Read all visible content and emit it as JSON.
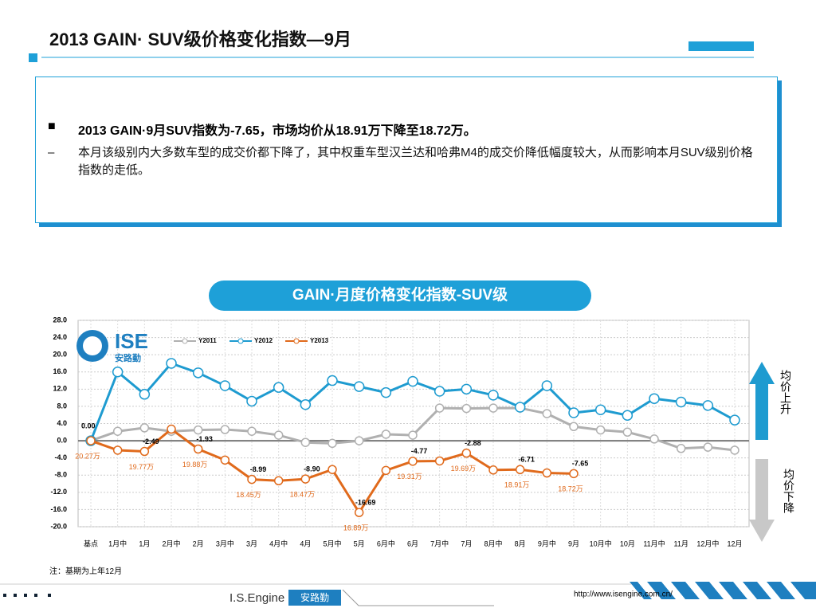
{
  "header": {
    "title": "2013 GAIN· SUV级价格变化指数—9月"
  },
  "summary": {
    "bullet": "2013 GAIN·9月SUV指数为-7.65，市场均价从18.91万下降至18.72万。",
    "detail": "本月该级别内大多数车型的成交价都下降了，其中权重车型汉兰达和哈弗M4的成交价降低幅度较大，从而影响本月SUV级别价格指数的走低。"
  },
  "chart_data": {
    "type": "line",
    "title": "GAIN·月度价格变化指数-SUV级",
    "categories": [
      "基点",
      "1月中",
      "1月",
      "2月中",
      "2月",
      "3月中",
      "3月",
      "4月中",
      "4月",
      "5月中",
      "5月",
      "6月中",
      "6月",
      "7月中",
      "7月",
      "8月中",
      "8月",
      "9月中",
      "9月",
      "10月中",
      "10月",
      "11月中",
      "11月",
      "12月中",
      "12月"
    ],
    "series": [
      {
        "name": "Y2011",
        "color": "#b0b0b0",
        "values": [
          0,
          2.2,
          3.0,
          2.2,
          2.5,
          2.6,
          2.2,
          1.3,
          -0.4,
          -0.6,
          0.0,
          1.5,
          1.3,
          7.6,
          7.5,
          7.6,
          7.6,
          6.3,
          3.3,
          2.5,
          2.0,
          0.4,
          -1.8,
          -1.5,
          -2.2
        ]
      },
      {
        "name": "Y2012",
        "color": "#1e9bd0",
        "values": [
          0,
          16,
          10.8,
          18,
          15.8,
          12.8,
          9.2,
          12.4,
          8.4,
          14,
          12.6,
          11.2,
          13.8,
          11.5,
          12,
          10.6,
          7.8,
          12.8,
          6.5,
          7.2,
          5.9,
          9.8,
          9,
          8.2,
          4.8
        ]
      },
      {
        "name": "Y2013",
        "color": "#e06a1c",
        "values": [
          0,
          -2.2,
          -2.49,
          2.7,
          -1.93,
          -4.5,
          -8.99,
          -9.3,
          -8.9,
          -6.7,
          -16.69,
          -6.9,
          -4.77,
          -4.7,
          -2.88,
          -6.8,
          -6.71,
          -7.5,
          -7.65,
          null,
          null,
          null,
          null,
          null,
          null
        ],
        "value_labels": [
          "0.00",
          null,
          "-2.49",
          null,
          "-1.93",
          null,
          "-8.99",
          null,
          "-8.90",
          null,
          "-16.69",
          null,
          "-4.77",
          null,
          "-2.88",
          null,
          "-6.71",
          null,
          "-7.65",
          null,
          null,
          null,
          null,
          null,
          null
        ],
        "price_labels": [
          "20.27万",
          null,
          "19.77万",
          null,
          "19.88万",
          null,
          "18.45万",
          null,
          "18.47万",
          null,
          "16.89万",
          null,
          "19.31万",
          null,
          "19.69万",
          null,
          "18.91万",
          null,
          "18.72万",
          null,
          null,
          null,
          null,
          null,
          null
        ]
      }
    ],
    "ylim": [
      -20,
      28
    ],
    "yticks": [
      {
        "value": -20,
        "label": "-20.0"
      },
      {
        "value": -16,
        "label": "-16.0"
      },
      {
        "value": -12,
        "label": "-12.0"
      },
      {
        "value": -8,
        "label": "-8.0"
      },
      {
        "value": -4,
        "label": "-4.0"
      },
      {
        "value": 0,
        "label": "0.0"
      },
      {
        "value": 4,
        "label": "4.0"
      },
      {
        "value": 8,
        "label": "8.0"
      },
      {
        "value": 12,
        "label": "12.0"
      },
      {
        "value": 16,
        "label": "16.0"
      },
      {
        "value": 20,
        "label": "20.0"
      },
      {
        "value": 24,
        "label": "24.0"
      },
      {
        "value": 28,
        "label": "28.0"
      }
    ],
    "grid": true,
    "legend": "top-left",
    "up_label": "均价上升",
    "down_label": "均价下降",
    "note": "注：基期为上年12月"
  },
  "logo": {
    "name": "ISE",
    "sub": "安路勤"
  },
  "footer": {
    "brand": "I.S.Engine",
    "brand_cn": "安路勤",
    "url": "http://www.isengine.com.cn/"
  }
}
